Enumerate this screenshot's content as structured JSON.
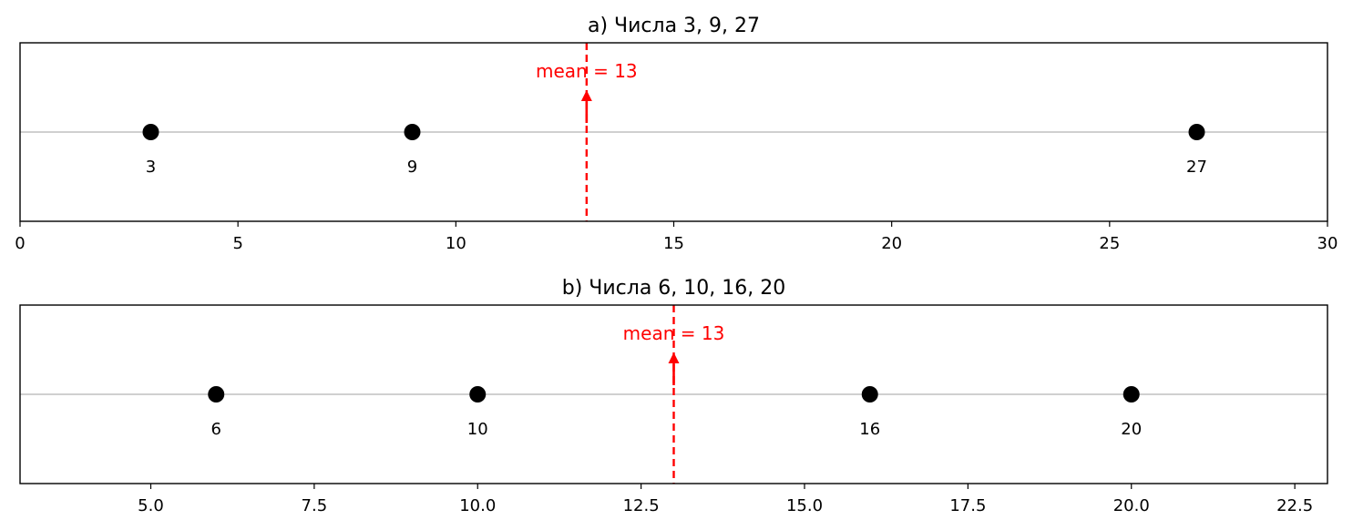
{
  "chart_data": [
    {
      "type": "scatter",
      "title": "a) Числа 3, 9, 27",
      "xlabel": "",
      "ylabel": "",
      "xlim": [
        0,
        30
      ],
      "xticks": [
        0,
        5,
        10,
        15,
        20,
        25,
        30
      ],
      "xtick_labels": [
        "0",
        "5",
        "10",
        "15",
        "20",
        "25",
        "30"
      ],
      "points": [
        {
          "x": 3,
          "label": "3"
        },
        {
          "x": 9,
          "label": "9"
        },
        {
          "x": 27,
          "label": "27"
        }
      ],
      "mean": {
        "x": 13,
        "label": "mean = 13",
        "color": "#ff0000"
      },
      "point_color": "#000000",
      "baseline_color": "#808080",
      "grid": false
    },
    {
      "type": "scatter",
      "title": "b) Числа 6, 10, 16, 20",
      "xlabel": "",
      "ylabel": "",
      "xlim": [
        3,
        23
      ],
      "xticks": [
        5,
        7.5,
        10,
        12.5,
        15,
        17.5,
        20,
        22.5
      ],
      "xtick_labels": [
        "5.0",
        "7.5",
        "10.0",
        "12.5",
        "15.0",
        "17.5",
        "20.0",
        "22.5"
      ],
      "points": [
        {
          "x": 6,
          "label": "6"
        },
        {
          "x": 10,
          "label": "10"
        },
        {
          "x": 16,
          "label": "16"
        },
        {
          "x": 20,
          "label": "20"
        }
      ],
      "mean": {
        "x": 13,
        "label": "mean = 13",
        "color": "#ff0000"
      },
      "point_color": "#000000",
      "baseline_color": "#808080",
      "grid": false
    }
  ]
}
